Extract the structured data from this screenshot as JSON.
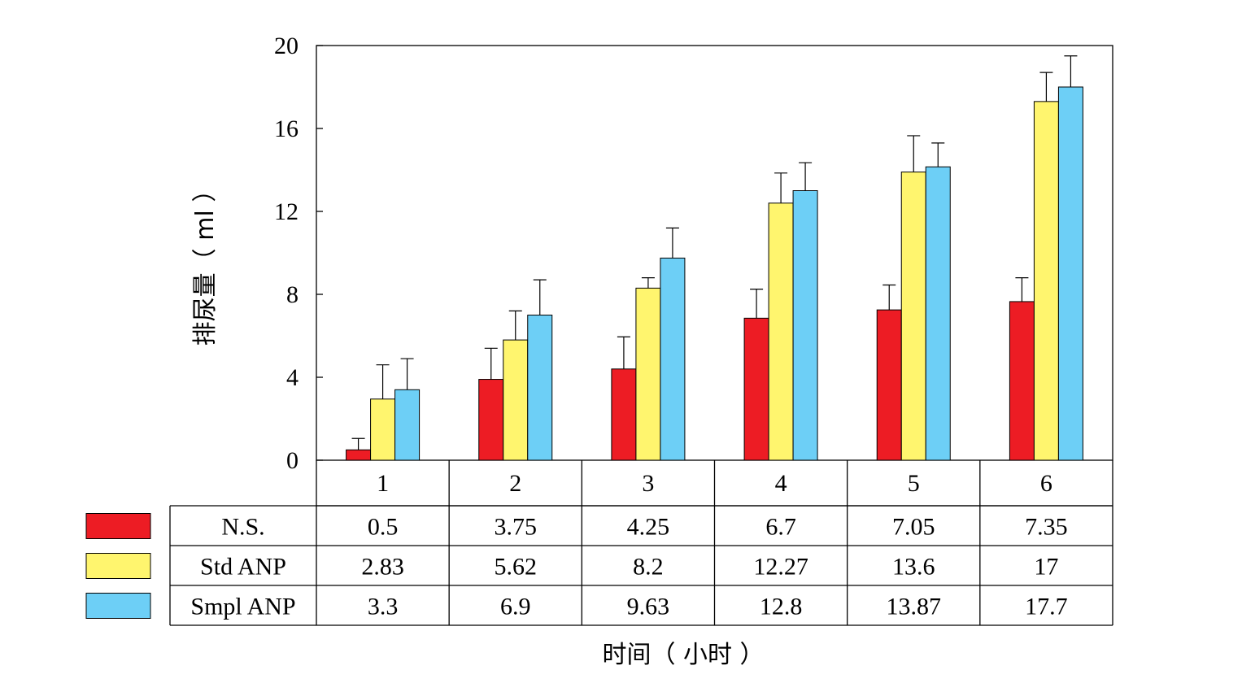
{
  "chart_data": {
    "type": "bar",
    "ylabel": "排尿量（ ml ）",
    "xlabel": "时间（ 小时 ）",
    "categories": [
      "1",
      "2",
      "3",
      "4",
      "5",
      "6"
    ],
    "ylim": [
      0,
      20
    ],
    "yticks": [
      "0",
      "4",
      "8",
      "12",
      "16",
      "20"
    ],
    "grid": false,
    "legend_placement": "left of data table",
    "series": [
      {
        "name": "N.S.",
        "color": "#ed1c24",
        "values": [
          0.5,
          3.75,
          4.25,
          6.7,
          7.05,
          7.35
        ],
        "bar_heights": [
          0.5,
          3.9,
          4.4,
          6.85,
          7.25,
          7.65
        ],
        "error_tops": [
          1.05,
          5.4,
          5.95,
          8.25,
          8.45,
          8.8
        ],
        "table_values": [
          "0.5",
          "3.75",
          "4.25",
          "6.7",
          "7.05",
          "7.35"
        ]
      },
      {
        "name": "Std ANP",
        "color": "#fff56e",
        "values": [
          2.83,
          5.62,
          8.2,
          12.27,
          13.6,
          17
        ],
        "bar_heights": [
          2.95,
          5.8,
          8.3,
          12.4,
          13.9,
          17.3
        ],
        "error_tops": [
          4.6,
          7.2,
          8.8,
          13.85,
          15.65,
          18.7
        ],
        "table_values": [
          "2.83",
          "5.62",
          "8.2",
          "12.27",
          "13.6",
          "17"
        ]
      },
      {
        "name": "Smpl ANP",
        "color": "#6dcff6",
        "values": [
          3.3,
          6.9,
          9.63,
          12.8,
          13.87,
          17.7
        ],
        "bar_heights": [
          3.4,
          7.0,
          9.75,
          13.0,
          14.15,
          18.0
        ],
        "error_tops": [
          4.9,
          8.7,
          11.2,
          14.35,
          15.3,
          19.5
        ],
        "table_values": [
          "3.3",
          "6.9",
          "9.63",
          "12.8",
          "13.87",
          "17.7"
        ]
      }
    ]
  }
}
